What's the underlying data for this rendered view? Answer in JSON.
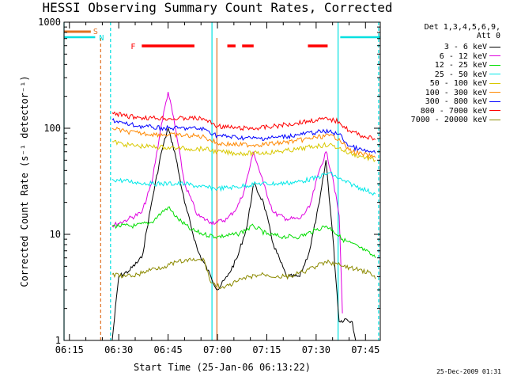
{
  "title": "HESSI Observing Summary Count Rates, Corrected",
  "legend_header": [
    "Det 1,3,4,5,6,9,",
    "Att 0"
  ],
  "flag_labels": {
    "S": "S",
    "N": "N",
    "F": "F"
  },
  "timestamp": "25-Dec-2009 01:31",
  "colors": {
    "3-6": "#000000",
    "6-12": "#e000e0",
    "12-25": "#00dd00",
    "25-50": "#00e8e8",
    "50-100": "#d8c800",
    "100-300": "#ff8800",
    "300-800": "#0000ff",
    "800-7000": "#ff0000",
    "7000-20000": "#8c8a00",
    "saa": "#e07020",
    "night": "#00e0e0",
    "flare": "#ff0000"
  },
  "chart_data": {
    "type": "line",
    "title": "HESSI Observing Summary Count Rates, Corrected",
    "xlabel": "Start Time (25-Jan-06 06:13:22)",
    "ylabel": "Corrected Count Rate (s⁻¹ detector⁻¹)",
    "y_scale": "log",
    "ylim": [
      1,
      1000
    ],
    "xlim": [
      "06:13:22",
      "07:49:30"
    ],
    "x_ticks": [
      "06:15",
      "06:30",
      "06:45",
      "07:00",
      "07:15",
      "07:30",
      "07:45"
    ],
    "y_ticks": [
      "1",
      "10",
      "100",
      "1000"
    ],
    "legend_position": "right",
    "series": [
      {
        "name": "3 - 6 keV",
        "key": "3-6",
        "x": [
          "06:28",
          "06:30",
          "06:33",
          "06:37",
          "06:40",
          "06:43",
          "06:45",
          "06:47",
          "06:50",
          "06:54",
          "06:58",
          "07:00",
          "07:03",
          "07:06",
          "07:09",
          "07:11",
          "07:14",
          "07:17",
          "07:21",
          "07:25",
          "07:28",
          "07:31",
          "07:33",
          "07:35",
          "07:37",
          "07:39",
          "07:41",
          "07:42"
        ],
        "y": [
          1.0,
          4.0,
          4.5,
          6.0,
          20,
          60,
          100,
          60,
          20,
          7,
          4,
          3,
          4,
          6,
          12,
          30,
          20,
          8,
          4,
          4,
          7,
          20,
          50,
          10,
          1.5,
          1.6,
          1.5,
          1.0
        ]
      },
      {
        "name": "6 - 12 keV",
        "key": "6-12",
        "x": [
          "06:28",
          "06:33",
          "06:37",
          "06:40",
          "06:43",
          "06:45",
          "06:47",
          "06:50",
          "06:54",
          "06:58",
          "07:00",
          "07:03",
          "07:06",
          "07:08",
          "07:11",
          "07:14",
          "07:17",
          "07:21",
          "07:25",
          "07:28",
          "07:31",
          "07:33",
          "07:35",
          "07:37",
          "07:38"
        ],
        "y": [
          12,
          14,
          16,
          30,
          110,
          220,
          110,
          30,
          15,
          13,
          13,
          14,
          18,
          25,
          60,
          30,
          16,
          14,
          14,
          18,
          40,
          60,
          35,
          15,
          1.8
        ]
      },
      {
        "name": "12 - 25 keV",
        "key": "12-25",
        "x": [
          "06:28",
          "06:35",
          "06:40",
          "06:43",
          "06:45",
          "06:48",
          "06:52",
          "06:56",
          "07:00",
          "07:06",
          "07:11",
          "07:15",
          "07:20",
          "07:25",
          "07:30",
          "07:33",
          "07:35",
          "07:38",
          "07:45",
          "07:48"
        ],
        "y": [
          12,
          12,
          13,
          16,
          18,
          14,
          11,
          10,
          9.5,
          10,
          12,
          10,
          9.5,
          9.5,
          11,
          12,
          11,
          9,
          7,
          6
        ]
      },
      {
        "name": "25 - 50 keV",
        "key": "25-50",
        "x": [
          "06:28",
          "06:35",
          "06:40",
          "06:45",
          "06:50",
          "06:55",
          "07:00",
          "07:06",
          "07:12",
          "07:18",
          "07:24",
          "07:30",
          "07:34",
          "07:38",
          "07:44",
          "07:48"
        ],
        "y": [
          33,
          31,
          30,
          30,
          30,
          28,
          27,
          28,
          30,
          30,
          31,
          34,
          38,
          32,
          27,
          24
        ]
      },
      {
        "name": "50 - 100 keV",
        "key": "50-100",
        "x": [
          "06:28",
          "06:32",
          "06:36",
          "06:40",
          "06:44",
          "06:48",
          "06:52",
          "06:56",
          "07:00",
          "07:06",
          "07:12",
          "07:18",
          "07:24",
          "07:30",
          "07:34",
          "07:37",
          "07:40",
          "07:44",
          "07:48"
        ],
        "y": [
          75,
          70,
          68,
          67,
          66,
          65,
          64,
          64,
          60,
          58,
          58,
          60,
          63,
          68,
          70,
          65,
          58,
          54,
          50
        ]
      },
      {
        "name": "100 - 300 keV",
        "key": "100-300",
        "x": [
          "06:28",
          "06:32",
          "06:36",
          "06:40",
          "06:44",
          "06:48",
          "06:52",
          "06:56",
          "07:00",
          "07:06",
          "07:12",
          "07:18",
          "07:24",
          "07:30",
          "07:34",
          "07:37",
          "07:40",
          "07:44",
          "07:48"
        ],
        "y": [
          100,
          93,
          90,
          88,
          87,
          86,
          85,
          83,
          72,
          70,
          70,
          72,
          76,
          82,
          85,
          80,
          62,
          57,
          53
        ]
      },
      {
        "name": "300 - 800 keV",
        "key": "300-800",
        "x": [
          "06:28",
          "06:32",
          "06:36",
          "06:40",
          "06:44",
          "06:48",
          "06:52",
          "06:56",
          "07:00",
          "07:06",
          "07:12",
          "07:18",
          "07:24",
          "07:30",
          "07:34",
          "07:37",
          "07:40",
          "07:44",
          "07:48"
        ],
        "y": [
          120,
          110,
          105,
          102,
          100,
          100,
          100,
          98,
          85,
          82,
          80,
          82,
          86,
          92,
          93,
          88,
          68,
          62,
          58
        ]
      },
      {
        "name": "800 - 7000 keV",
        "key": "800-7000",
        "x": [
          "06:28",
          "06:32",
          "06:36",
          "06:40",
          "06:44",
          "06:48",
          "06:52",
          "06:56",
          "07:00",
          "07:06",
          "07:12",
          "07:18",
          "07:24",
          "07:30",
          "07:34",
          "07:37",
          "07:40",
          "07:44",
          "07:48"
        ],
        "y": [
          140,
          130,
          127,
          125,
          124,
          123,
          125,
          122,
          105,
          100,
          100,
          105,
          112,
          120,
          122,
          115,
          95,
          85,
          78
        ]
      },
      {
        "name": "7000 - 20000 keV",
        "key": "7000-20000",
        "x": [
          "06:28",
          "06:32",
          "06:36",
          "06:40",
          "06:44",
          "06:48",
          "06:52",
          "06:56",
          "06:58",
          "07:02",
          "07:06",
          "07:10",
          "07:14",
          "07:18",
          "07:22",
          "07:26",
          "07:30",
          "07:34",
          "07:38",
          "07:42",
          "07:46",
          "07:48"
        ],
        "y": [
          4.2,
          4.0,
          4.2,
          4.7,
          5.0,
          5.5,
          5.7,
          5.7,
          3.5,
          3.1,
          3.6,
          4.0,
          4.2,
          4.0,
          4.0,
          4.4,
          5.0,
          5.5,
          5.0,
          4.7,
          4.4,
          3.8
        ]
      }
    ],
    "flags": {
      "saa": {
        "label": "S",
        "intervals": [
          [
            "06:13:22",
            "06:21:30"
          ]
        ]
      },
      "night": {
        "label": "N",
        "intervals": [
          [
            "06:13:22",
            "06:22:50"
          ],
          [
            "07:37:20",
            "07:49:30"
          ]
        ]
      },
      "flare": {
        "label": "F",
        "intervals": [
          [
            "06:37",
            "06:53"
          ],
          [
            "07:03",
            "07:05:30"
          ],
          [
            "07:07:30",
            "07:11"
          ],
          [
            "07:27:30",
            "07:33:30"
          ]
        ]
      }
    },
    "night_boundaries": [
      "06:13:22",
      "06:27:30",
      "06:58:20",
      "07:36:40",
      "07:49:00"
    ],
    "saa_boundaries": [
      "06:24:30",
      "06:59:50"
    ]
  }
}
